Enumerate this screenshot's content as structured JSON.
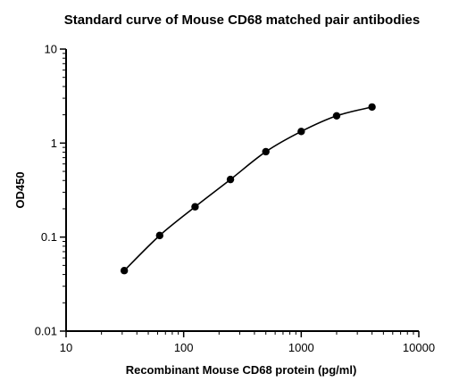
{
  "chart_data": {
    "type": "scatter",
    "title": "Standard curve of Mouse CD68 matched pair antibodies",
    "xlabel": "Recombinant Mouse CD68 protein (pg/ml)",
    "ylabel": "OD450",
    "xscale": "log",
    "yscale": "log",
    "xlim": [
      10,
      10000
    ],
    "ylim": [
      0.01,
      10
    ],
    "x_ticks": [
      10,
      100,
      1000,
      10000
    ],
    "x_tick_labels": [
      "10",
      "100",
      "1000",
      "10000"
    ],
    "y_ticks": [
      0.01,
      0.1,
      1,
      10
    ],
    "y_tick_labels": [
      "0.01",
      "0.1",
      "1",
      "10"
    ],
    "grid": false,
    "fit_curve": true,
    "series": [
      {
        "x": [
          31.25,
          62.5,
          125,
          250,
          500,
          1000,
          2000,
          4000
        ],
        "y": [
          0.044,
          0.104,
          0.21,
          0.41,
          0.81,
          1.33,
          1.95,
          2.42
        ]
      }
    ]
  }
}
